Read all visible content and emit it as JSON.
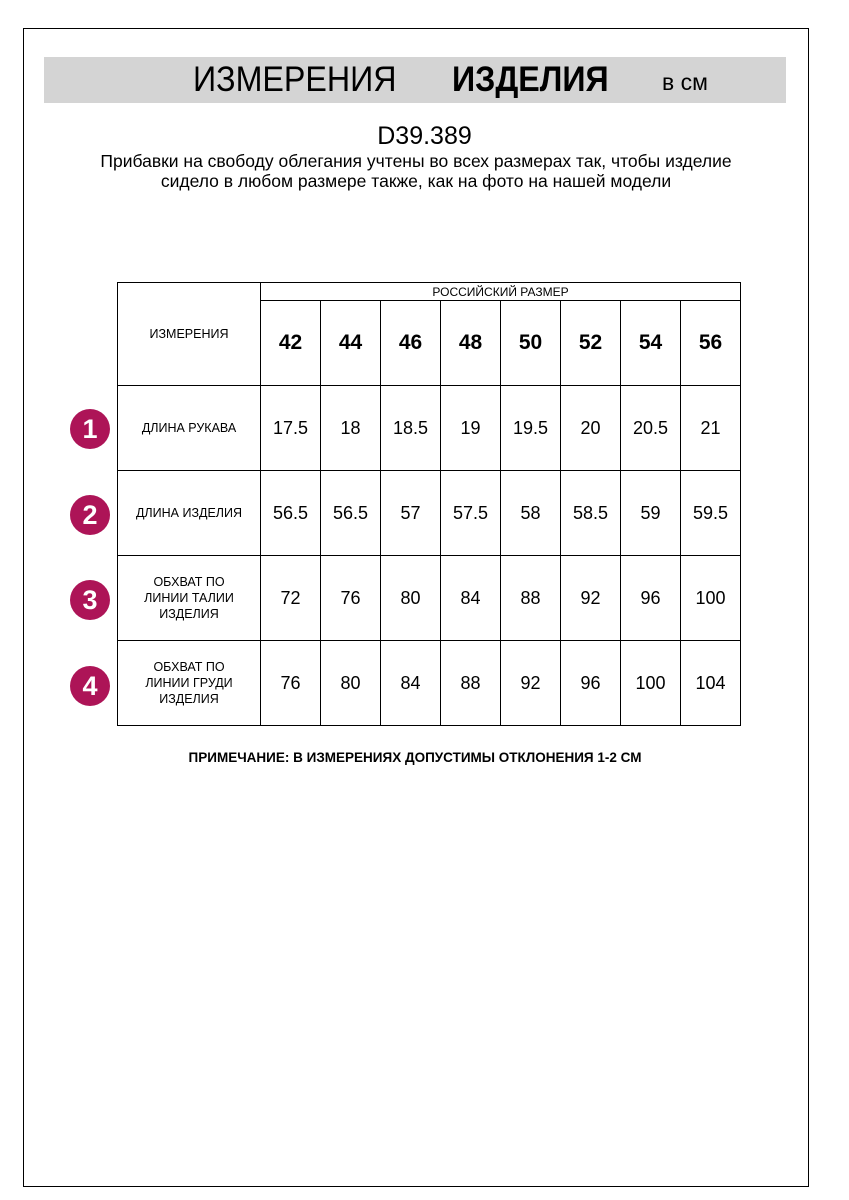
{
  "header": {
    "title_regular": "ИЗМЕРЕНИЯ",
    "title_bold": "ИЗДЕЛИЯ",
    "unit": "в см"
  },
  "article": "D39.389",
  "description": "Прибавки на свободу облегания учтены во всех размерах так, чтобы изделие сидело в любом размере также, как на фото на нашей модели",
  "table": {
    "corner": "ИЗМЕРЕНИЯ",
    "group_header": "РОССИЙСКИЙ РАЗМЕР",
    "sizes": [
      "42",
      "44",
      "46",
      "48",
      "50",
      "52",
      "54",
      "56"
    ],
    "rows": [
      {
        "badge": "1",
        "label": "ДЛИНА РУКАВА",
        "values": [
          "17.5",
          "18",
          "18.5",
          "19",
          "19.5",
          "20",
          "20.5",
          "21"
        ]
      },
      {
        "badge": "2",
        "label": "ДЛИНА ИЗДЕЛИЯ",
        "values": [
          "56.5",
          "56.5",
          "57",
          "57.5",
          "58",
          "58.5",
          "59",
          "59.5"
        ]
      },
      {
        "badge": "3",
        "label": "ОБХВАТ ПО ЛИНИИ ТАЛИИ ИЗДЕЛИЯ",
        "values": [
          "72",
          "76",
          "80",
          "84",
          "88",
          "92",
          "96",
          "100"
        ]
      },
      {
        "badge": "4",
        "label": "ОБХВАТ ПО ЛИНИИ ГРУДИ ИЗДЕЛИЯ",
        "values": [
          "76",
          "80",
          "84",
          "88",
          "92",
          "96",
          "100",
          "104"
        ]
      }
    ]
  },
  "note": "ПРИМЕЧАНИЕ: В ИЗМЕРЕНИЯХ ДОПУСТИМЫ ОТКЛОНЕНИЯ 1-2 СМ",
  "colors": {
    "badge": "#ad1457",
    "band": "#d4d4d4"
  }
}
